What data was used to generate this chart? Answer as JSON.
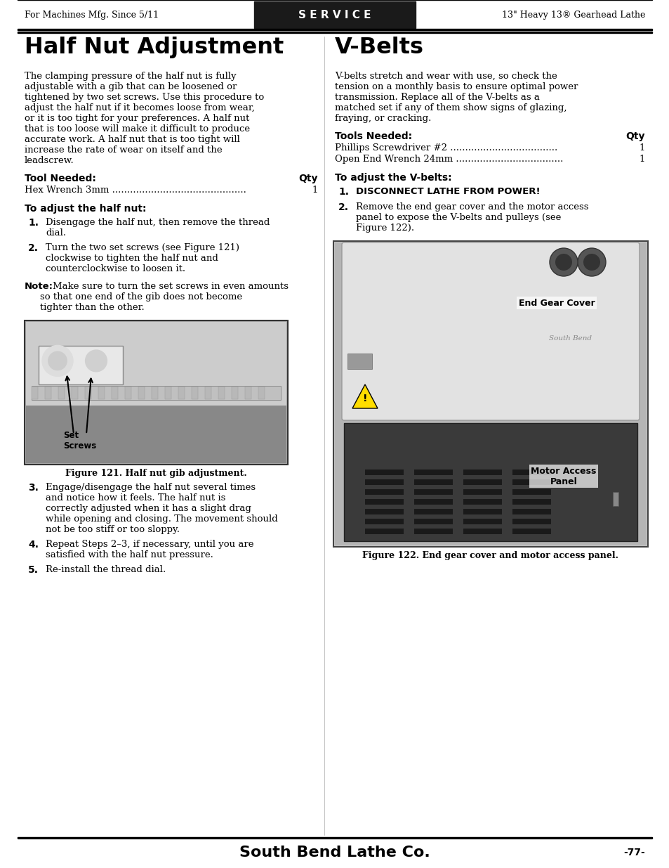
{
  "page_bg": "#ffffff",
  "header_bg": "#1a1a1a",
  "header_text_color": "#ffffff",
  "header_left": "For Machines Mfg. Since 5/11",
  "header_center": "S E R V I C E",
  "header_right": "13\" Heavy 13® Gearhead Lathe",
  "footer_company": "South Bend Lathe Co.",
  "footer_registered": "®",
  "footer_page": "-77-",
  "left_title": "Half Nut Adjustment",
  "right_title": "V-Belts",
  "left_body": "The clamping pressure of the half nut is fully adjustable with a gib that can be loosened or tightened by two set screws. Use this procedure to adjust the half nut if it becomes loose from wear, or it is too tight for your preferences. A half nut that is too loose will make it difficult to produce accurate work. A half nut that is too tight will increase the rate of wear on itself and the leadscrew.",
  "right_body": "V-belts stretch and wear with use, so check the tension on a monthly basis to ensure optimal power transmission. Replace all of the V-belts as a matched set if any of them show signs of glazing, fraying, or cracking.",
  "left_tool_header": "Tool Needed:",
  "left_tool_qty": "Qty",
  "left_tools": [
    [
      "Hex Wrench 3mm",
      "1"
    ]
  ],
  "right_tool_header": "Tools Needed:",
  "right_tool_qty": "Qty",
  "right_tools": [
    [
      "Phillips Screwdriver #2",
      "1"
    ],
    [
      "Open End Wrench 24mm",
      "1"
    ]
  ],
  "left_section_header": "To adjust the half nut:",
  "left_steps": [
    "Disengage the half nut, then remove the thread dial.",
    "Turn the two set screws (see Figure 121) clockwise to tighten the half nut and counterclockwise to loosen it.",
    "Engage/disengage the half nut several times and notice how it feels.  The half nut is correctly adjusted when it has a slight drag while opening and closing. The movement should not be too stiff or too sloppy.",
    "Repeat Steps 2–3, if necessary, until you are satisfied with the half nut pressure.",
    "Re-install the thread dial."
  ],
  "left_note": "Note: Make sure to turn the set screws in even amounts so that one end of the gib does not become tighter than the other.",
  "left_fig_caption": "Figure 121. Half nut gib adjustment.",
  "right_section_header": "To adjust the V-belts:",
  "right_steps": [
    "DISCONNECT LATHE FROM POWER!",
    "Remove the end gear cover and the motor access panel to expose the V-belts and pulleys (see Figure 122)."
  ],
  "right_fig_caption": "Figure 122. End gear cover and motor access panel.",
  "right_fig_label1": "End Gear Cover",
  "right_fig_label2": "Motor Access\nPanel"
}
